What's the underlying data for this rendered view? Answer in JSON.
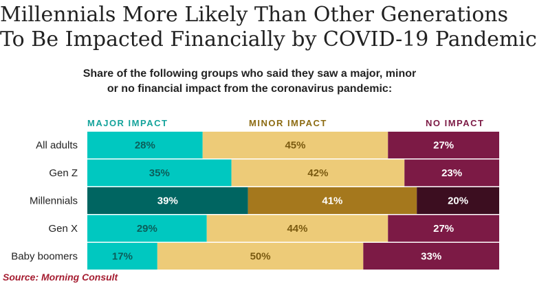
{
  "title_line1": "Millennials More Likely Than Other Generations",
  "title_line2": "To Be Impacted Financially by COVID-19 Pandemic",
  "subtitle_line1": "Share of the following groups who said they saw a major, minor",
  "subtitle_line2": "or no financial impact from the coronavirus pandemic:",
  "source": "Source: Morning Consult",
  "colors": {
    "major": "#00c8c0",
    "minor": "#edcb78",
    "none": "#7c1a45",
    "major_highlight": "#006561",
    "minor_highlight": "#a5781d",
    "none_highlight": "#3c0e20",
    "legend_major": "#14a39b",
    "legend_minor": "#8c6b12",
    "legend_none": "#7c1a45"
  },
  "chart_data": {
    "type": "bar",
    "orientation": "horizontal",
    "stacked": true,
    "title": "Millennials More Likely Than Other Generations To Be Impacted Financially by COVID-19 Pandemic",
    "categories": [
      "All adults",
      "Gen Z",
      "Millennials",
      "Gen X",
      "Baby boomers"
    ],
    "highlight_category": "Millennials",
    "value_suffix": "%",
    "series": [
      {
        "key": "major",
        "name": "MAJOR IMPACT",
        "values": [
          28,
          35,
          39,
          29,
          17
        ]
      },
      {
        "key": "minor",
        "name": "MINOR IMPACT",
        "values": [
          45,
          42,
          41,
          44,
          50
        ]
      },
      {
        "key": "none",
        "name": "NO IMPACT",
        "values": [
          27,
          23,
          20,
          27,
          33
        ]
      }
    ],
    "xlim": [
      0,
      100
    ],
    "grid": false,
    "legend_position": "top"
  }
}
